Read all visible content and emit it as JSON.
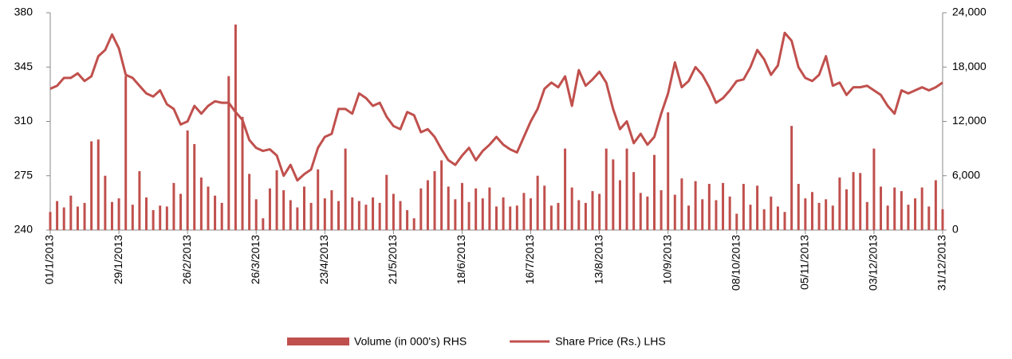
{
  "chart_data": {
    "type": "combo",
    "categories": [
      "01/1/2013",
      null,
      null,
      null,
      null,
      null,
      null,
      null,
      null,
      null,
      "29/1/2013",
      null,
      null,
      null,
      null,
      null,
      null,
      null,
      null,
      null,
      "26/2/2013",
      null,
      null,
      null,
      null,
      null,
      null,
      null,
      null,
      null,
      "26/3/2013",
      null,
      null,
      null,
      null,
      null,
      null,
      null,
      null,
      null,
      "23/4/2013",
      null,
      null,
      null,
      null,
      null,
      null,
      null,
      null,
      null,
      "21/5/2013",
      null,
      null,
      null,
      null,
      null,
      null,
      null,
      null,
      null,
      "18/6/2013",
      null,
      null,
      null,
      null,
      null,
      null,
      null,
      null,
      null,
      "16/7/2013",
      null,
      null,
      null,
      null,
      null,
      null,
      null,
      null,
      null,
      "13/8/2013",
      null,
      null,
      null,
      null,
      null,
      null,
      null,
      null,
      null,
      "10/9/2013",
      null,
      null,
      null,
      null,
      null,
      null,
      null,
      null,
      null,
      "08/10/2013",
      null,
      null,
      null,
      null,
      null,
      null,
      null,
      null,
      null,
      "05/11/2013",
      null,
      null,
      null,
      null,
      null,
      null,
      null,
      null,
      null,
      "03/12/2013",
      null,
      null,
      null,
      null,
      null,
      null,
      null,
      null,
      null,
      "31/12/2013"
    ],
    "series": [
      {
        "name": "Volume (in 000's) RHS",
        "type": "bar",
        "axis": "y2",
        "color": "#c0504d",
        "values": [
          2000,
          3200,
          2500,
          3800,
          2600,
          3000,
          9800,
          10000,
          6000,
          3100,
          3500,
          17000,
          2800,
          6500,
          3600,
          2200,
          2700,
          2600,
          5200,
          4000,
          11000,
          9500,
          5800,
          4800,
          3800,
          3000,
          17000,
          22700,
          12500,
          6200,
          3400,
          1300,
          4600,
          6600,
          4400,
          3300,
          2500,
          4800,
          3000,
          6700,
          3500,
          4400,
          3200,
          9000,
          3600,
          3200,
          2800,
          3600,
          3000,
          6100,
          4000,
          3200,
          2200,
          1300,
          4600,
          5500,
          6500,
          7700,
          4800,
          3400,
          5200,
          3100,
          4600,
          3500,
          4700,
          2600,
          3600,
          2600,
          2700,
          4100,
          3500,
          6000,
          4900,
          2700,
          3000,
          9000,
          4700,
          3300,
          3000,
          4300,
          4000,
          9000,
          7800,
          5500,
          9000,
          6400,
          4100,
          3700,
          8300,
          4400,
          13000,
          3900,
          5700,
          2700,
          5400,
          3400,
          5100,
          3300,
          5200,
          3700,
          1800,
          5100,
          2800,
          4900,
          2300,
          3700,
          2600,
          2000,
          11500,
          5100,
          3500,
          4200,
          3000,
          3400,
          2700,
          5800,
          4500,
          6400,
          6300,
          3100,
          9000,
          4800,
          2700,
          4700,
          4300,
          2800,
          3500,
          4700,
          2600,
          5500,
          2300
        ]
      },
      {
        "name": "Share Price (Rs.) LHS",
        "type": "line",
        "color": "#c0504d",
        "values": [
          331,
          333,
          338,
          338,
          341,
          336,
          339,
          352,
          356,
          366,
          357,
          340,
          338,
          333,
          328,
          326,
          330,
          321,
          318,
          308,
          310,
          320,
          315,
          320,
          323,
          322,
          322,
          316,
          311,
          298,
          293,
          291,
          292,
          288,
          275,
          282,
          272,
          276,
          279,
          293,
          300,
          302,
          318,
          318,
          315,
          328,
          325,
          320,
          322,
          313,
          307,
          305,
          316,
          314,
          303,
          305,
          300,
          292,
          285,
          282,
          288,
          293,
          285,
          291,
          295,
          300,
          295,
          292,
          290,
          300,
          310,
          318,
          331,
          335,
          332,
          339,
          320,
          343,
          333,
          337,
          342,
          335,
          318,
          305,
          310,
          296,
          302,
          295,
          300,
          315,
          328,
          348,
          332,
          336,
          345,
          340,
          332,
          322,
          325,
          330,
          336,
          337,
          345,
          356,
          350,
          340,
          346,
          367,
          362,
          345,
          338,
          336,
          340,
          352,
          333,
          335,
          327,
          332,
          332,
          333,
          330,
          327,
          320,
          315,
          330,
          328,
          330,
          332,
          330,
          332,
          335
        ]
      }
    ],
    "ylim": [
      240,
      380
    ],
    "yticks": [
      240,
      275,
      310,
      345,
      380
    ],
    "y2lim": [
      0,
      24000
    ],
    "y2ticks": [
      0,
      {
        "value": 6000,
        "label": "6,000"
      },
      {
        "value": 12000,
        "label": "12,000"
      },
      {
        "value": 18000,
        "label": "18,000"
      },
      {
        "value": 24000,
        "label": "24,000"
      }
    ],
    "legend": "bottom"
  }
}
